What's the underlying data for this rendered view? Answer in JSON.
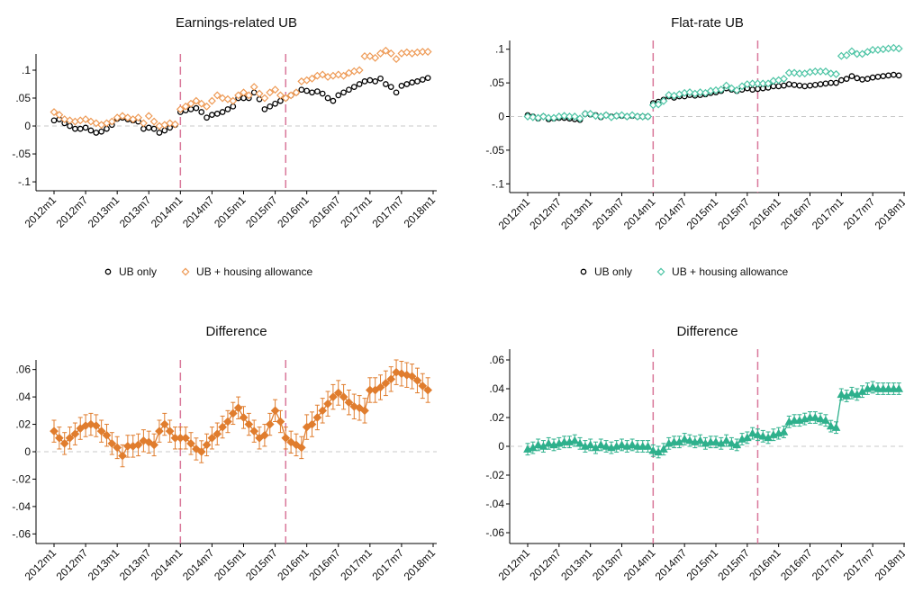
{
  "chart_data": [
    {
      "type": "line",
      "title": "Earnings-related UB",
      "categories": [
        "2012m1",
        null,
        null,
        null,
        null,
        null,
        "2012m7",
        null,
        null,
        null,
        null,
        null,
        "2013m1",
        null,
        null,
        null,
        null,
        null,
        "2013m7",
        null,
        null,
        null,
        null,
        null,
        "2014m1",
        null,
        null,
        null,
        null,
        null,
        "2014m7",
        null,
        null,
        null,
        null,
        null,
        "2015m1",
        null,
        null,
        null,
        null,
        null,
        "2015m7",
        null,
        null,
        null,
        null,
        null,
        "2016m1",
        null,
        null,
        null,
        null,
        null,
        "2016m7",
        null,
        null,
        null,
        null,
        null,
        "2017m1",
        null,
        null,
        null,
        null,
        null,
        "2017m7",
        null,
        null,
        null,
        null,
        null,
        "2018m1"
      ],
      "ylim": [
        -0.116,
        0.129
      ],
      "yticks": [
        {
          "value": -0.1,
          "label": "-.1"
        },
        {
          "value": -0.05,
          "label": "-.05"
        },
        0,
        {
          "value": 0.05,
          "label": ".05"
        },
        {
          "value": 0.1,
          "label": ".1"
        }
      ],
      "hline": 0,
      "vlines": [
        24,
        44
      ],
      "legend": "bottom",
      "series": [
        {
          "name": "UB only",
          "color": "#000000",
          "marker": "circle",
          "filled": false,
          "connect": false,
          "values": [
            0.01,
            0.012,
            0.005,
            0,
            -0.005,
            -0.005,
            -0.003,
            -0.008,
            -0.012,
            -0.01,
            -0.005,
            0.002,
            0.013,
            0.015,
            0.012,
            0.01,
            0.008,
            -0.005,
            -0.003,
            -0.005,
            -0.012,
            -0.008,
            -0.003,
            0.002,
            0.025,
            0.028,
            0.03,
            0.032,
            0.025,
            0.015,
            0.02,
            0.022,
            0.025,
            0.03,
            0.035,
            0.05,
            0.05,
            0.05,
            0.06,
            0.048,
            0.03,
            0.035,
            0.04,
            0.045,
            0.05,
            0.055,
            0.06,
            0.065,
            0.063,
            0.06,
            0.062,
            0.058,
            0.05,
            0.045,
            0.055,
            0.06,
            0.065,
            0.07,
            0.075,
            0.08,
            0.082,
            0.08,
            0.085,
            0.075,
            0.07,
            0.06,
            0.072,
            0.075,
            0.078,
            0.08,
            0.083,
            0.086,
            null
          ]
        },
        {
          "name": "UB + housing allowance",
          "color": "#ee9a55",
          "marker": "diamond",
          "filled": false,
          "connect": false,
          "values": [
            0.025,
            0.02,
            0.012,
            0.01,
            0.008,
            0.01,
            0.012,
            0.008,
            0.005,
            0.002,
            0.005,
            0.008,
            0.015,
            0.018,
            0.015,
            0.012,
            0.015,
            0.005,
            0.018,
            0.008,
            0,
            0.002,
            0.005,
            0.003,
            0.03,
            0.035,
            0.04,
            0.045,
            0.04,
            0.035,
            0.045,
            0.055,
            0.05,
            0.048,
            0.045,
            0.055,
            0.06,
            0.055,
            0.07,
            0.058,
            0.05,
            0.06,
            0.065,
            0.055,
            0.05,
            0.055,
            0.06,
            0.08,
            0.082,
            0.085,
            0.09,
            0.092,
            0.088,
            0.09,
            0.092,
            0.09,
            0.095,
            0.098,
            0.1,
            0.125,
            0.125,
            0.122,
            0.13,
            0.135,
            0.13,
            0.12,
            0.13,
            0.132,
            0.13,
            0.132,
            0.133,
            0.133,
            null
          ]
        }
      ]
    },
    {
      "type": "line",
      "title": "Flat-rate UB",
      "categories": [
        "2012m1",
        null,
        null,
        null,
        null,
        null,
        "2012m7",
        null,
        null,
        null,
        null,
        null,
        "2013m1",
        null,
        null,
        null,
        null,
        null,
        "2013m7",
        null,
        null,
        null,
        null,
        null,
        "2014m1",
        null,
        null,
        null,
        null,
        null,
        "2014m7",
        null,
        null,
        null,
        null,
        null,
        "2015m1",
        null,
        null,
        null,
        null,
        null,
        "2015m7",
        null,
        null,
        null,
        null,
        null,
        "2016m1",
        null,
        null,
        null,
        null,
        null,
        "2016m7",
        null,
        null,
        null,
        null,
        null,
        "2017m1",
        null,
        null,
        null,
        null,
        null,
        "2017m7",
        null,
        null,
        null,
        null,
        null,
        "2018m1"
      ],
      "ylim": [
        -0.113,
        0.113
      ],
      "yticks": [
        {
          "value": -0.1,
          "label": "-.1"
        },
        {
          "value": -0.05,
          "label": "-.05"
        },
        0,
        {
          "value": 0.05,
          "label": ".05"
        },
        {
          "value": 0.1,
          "label": ".1"
        }
      ],
      "hline": 0,
      "vlines": [
        24,
        44
      ],
      "legend": "bottom",
      "series": [
        {
          "name": "UB only",
          "color": "#000000",
          "marker": "circle",
          "filled": false,
          "connect": false,
          "values": [
            0.002,
            0,
            -0.003,
            0,
            -0.004,
            -0.003,
            -0.002,
            -0.002,
            -0.003,
            -0.004,
            -0.005,
            0.004,
            0.003,
            0.002,
            -0.001,
            0.002,
            0,
            0.001,
            0.001,
            0,
            0.001,
            0,
            0,
            0,
            0.02,
            0.022,
            0.025,
            0.03,
            0.028,
            0.03,
            0.03,
            0.032,
            0.031,
            0.032,
            0.033,
            0.035,
            0.036,
            0.038,
            0.042,
            0.04,
            0.038,
            0.04,
            0.042,
            0.04,
            0.041,
            0.042,
            0.043,
            0.045,
            0.045,
            0.046,
            0.048,
            0.047,
            0.046,
            0.045,
            0.046,
            0.047,
            0.048,
            0.049,
            0.05,
            0.05,
            0.054,
            0.056,
            0.06,
            0.057,
            0.055,
            0.056,
            0.058,
            0.059,
            0.06,
            0.061,
            0.062,
            0.061,
            null
          ]
        },
        {
          "name": "UB + housing allowance",
          "color": "#4cc4a4",
          "marker": "diamond",
          "filled": false,
          "connect": false,
          "values": [
            0,
            -0.001,
            -0.002,
            0,
            -0.002,
            -0.002,
            0,
            0.001,
            0,
            0,
            -0.003,
            0.004,
            0.004,
            0.001,
            0,
            0.002,
            -0.001,
            0.001,
            0.002,
            0,
            0.002,
            0,
            0,
            0,
            0.017,
            0.018,
            0.023,
            0.032,
            0.031,
            0.033,
            0.035,
            0.036,
            0.034,
            0.036,
            0.035,
            0.038,
            0.039,
            0.04,
            0.046,
            0.042,
            0.039,
            0.045,
            0.048,
            0.049,
            0.049,
            0.049,
            0.049,
            0.053,
            0.054,
            0.056,
            0.065,
            0.065,
            0.064,
            0.064,
            0.066,
            0.067,
            0.067,
            0.067,
            0.064,
            0.063,
            0.09,
            0.091,
            0.097,
            0.093,
            0.093,
            0.096,
            0.099,
            0.099,
            0.1,
            0.101,
            0.102,
            0.101,
            null
          ]
        }
      ]
    },
    {
      "type": "line",
      "title": "Difference",
      "categories": [
        "2012m1",
        null,
        null,
        null,
        null,
        null,
        "2012m7",
        null,
        null,
        null,
        null,
        null,
        "2013m1",
        null,
        null,
        null,
        null,
        null,
        "2013m7",
        null,
        null,
        null,
        null,
        null,
        "2014m1",
        null,
        null,
        null,
        null,
        null,
        "2014m7",
        null,
        null,
        null,
        null,
        null,
        "2015m1",
        null,
        null,
        null,
        null,
        null,
        "2015m7",
        null,
        null,
        null,
        null,
        null,
        "2016m1",
        null,
        null,
        null,
        null,
        null,
        "2016m7",
        null,
        null,
        null,
        null,
        null,
        "2017m1",
        null,
        null,
        null,
        null,
        null,
        "2017m7",
        null,
        null,
        null,
        null,
        null,
        "2018m1"
      ],
      "ylim": [
        -0.067,
        0.067
      ],
      "yticks": [
        {
          "value": -0.06,
          "label": "-.06"
        },
        {
          "value": -0.04,
          "label": "-.04"
        },
        {
          "value": -0.02,
          "label": "-.02"
        },
        0,
        {
          "value": 0.02,
          "label": ".02"
        },
        {
          "value": 0.04,
          "label": ".04"
        },
        {
          "value": 0.06,
          "label": ".06"
        }
      ],
      "hline": 0,
      "vlines": [
        24,
        44
      ],
      "series": [
        {
          "color": "#e07d2e",
          "marker": "diamond",
          "filled": true,
          "connect": true,
          "values": [
            0.015,
            0.01,
            0.006,
            0.01,
            0.013,
            0.017,
            0.019,
            0.02,
            0.019,
            0.015,
            0.012,
            0.006,
            0.003,
            -0.003,
            0.004,
            0.004,
            0.005,
            0.008,
            0.007,
            0.005,
            0.015,
            0.02,
            0.015,
            0.01,
            0.01,
            0.01,
            0.006,
            0.002,
            0,
            0.005,
            0.01,
            0.013,
            0.018,
            0.022,
            0.028,
            0.032,
            0.025,
            0.02,
            0.015,
            0.01,
            0.012,
            0.02,
            0.03,
            0.022,
            0.01,
            0.007,
            0.005,
            0.003,
            0.018,
            0.02,
            0.025,
            0.03,
            0.035,
            0.04,
            0.043,
            0.04,
            0.036,
            0.033,
            0.032,
            0.03,
            0.045,
            0.045,
            0.047,
            0.05,
            0.053,
            0.058,
            0.057,
            0.056,
            0.055,
            0.052,
            0.048,
            0.045,
            null
          ],
          "errors": [
            0.008,
            0.008,
            0.008,
            0.008,
            0.008,
            0.008,
            0.008,
            0.008,
            0.008,
            0.008,
            0.008,
            0.008,
            0.008,
            0.008,
            0.008,
            0.008,
            0.008,
            0.008,
            0.008,
            0.008,
            0.008,
            0.008,
            0.008,
            0.008,
            0.008,
            0.008,
            0.008,
            0.008,
            0.008,
            0.008,
            0.008,
            0.008,
            0.008,
            0.008,
            0.008,
            0.008,
            0.008,
            0.008,
            0.008,
            0.008,
            0.008,
            0.008,
            0.008,
            0.008,
            0.008,
            0.008,
            0.008,
            0.008,
            0.009,
            0.009,
            0.009,
            0.009,
            0.009,
            0.009,
            0.009,
            0.009,
            0.009,
            0.009,
            0.009,
            0.009,
            0.009,
            0.009,
            0.009,
            0.009,
            0.009,
            0.009,
            0.009,
            0.009,
            0.009,
            0.009,
            0.009,
            0.009,
            null
          ]
        }
      ]
    },
    {
      "type": "line",
      "title": "Difference",
      "categories": [
        "2012m1",
        null,
        null,
        null,
        null,
        null,
        "2012m7",
        null,
        null,
        null,
        null,
        null,
        "2013m1",
        null,
        null,
        null,
        null,
        null,
        "2013m7",
        null,
        null,
        null,
        null,
        null,
        "2014m1",
        null,
        null,
        null,
        null,
        null,
        "2014m7",
        null,
        null,
        null,
        null,
        null,
        "2015m1",
        null,
        null,
        null,
        null,
        null,
        "2015m7",
        null,
        null,
        null,
        null,
        null,
        "2016m1",
        null,
        null,
        null,
        null,
        null,
        "2016m7",
        null,
        null,
        null,
        null,
        null,
        "2017m1",
        null,
        null,
        null,
        null,
        null,
        "2017m7",
        null,
        null,
        null,
        null,
        null,
        "2018m1"
      ],
      "ylim": [
        -0.0675,
        0.0675
      ],
      "yticks": [
        {
          "value": -0.06,
          "label": "-.06"
        },
        {
          "value": -0.04,
          "label": "-.04"
        },
        {
          "value": -0.02,
          "label": "-.02"
        },
        0,
        {
          "value": 0.02,
          "label": ".02"
        },
        {
          "value": 0.04,
          "label": ".04"
        },
        {
          "value": 0.06,
          "label": ".06"
        }
      ],
      "hline": 0,
      "vlines": [
        24,
        44
      ],
      "series": [
        {
          "color": "#2eb08c",
          "marker": "triangle",
          "filled": true,
          "connect": true,
          "values": [
            -0.002,
            -0.001,
            0.001,
            0,
            0.002,
            0.001,
            0.002,
            0.003,
            0.003,
            0.004,
            0.002,
            0,
            0.001,
            -0.001,
            0.001,
            0,
            -0.001,
            0,
            0.001,
            0,
            0.001,
            0,
            0,
            0,
            -0.003,
            -0.004,
            -0.002,
            0.002,
            0.003,
            0.003,
            0.005,
            0.004,
            0.003,
            0.004,
            0.002,
            0.003,
            0.003,
            0.002,
            0.004,
            0.002,
            0.001,
            0.005,
            0.006,
            0.009,
            0.008,
            0.007,
            0.006,
            0.008,
            0.009,
            0.01,
            0.017,
            0.018,
            0.018,
            0.019,
            0.02,
            0.02,
            0.019,
            0.018,
            0.014,
            0.013,
            0.036,
            0.035,
            0.037,
            0.036,
            0.038,
            0.04,
            0.041,
            0.04,
            0.04,
            0.04,
            0.04,
            0.04,
            null
          ],
          "errors": [
            0.004,
            0.004,
            0.004,
            0.004,
            0.004,
            0.004,
            0.004,
            0.004,
            0.004,
            0.004,
            0.004,
            0.004,
            0.004,
            0.004,
            0.004,
            0.004,
            0.004,
            0.004,
            0.004,
            0.004,
            0.004,
            0.004,
            0.004,
            0.004,
            0.004,
            0.004,
            0.004,
            0.004,
            0.004,
            0.004,
            0.004,
            0.004,
            0.004,
            0.004,
            0.004,
            0.004,
            0.004,
            0.004,
            0.004,
            0.004,
            0.004,
            0.004,
            0.004,
            0.004,
            0.004,
            0.004,
            0.004,
            0.004,
            0.004,
            0.004,
            0.004,
            0.004,
            0.004,
            0.004,
            0.004,
            0.004,
            0.004,
            0.004,
            0.004,
            0.004,
            0.004,
            0.004,
            0.004,
            0.004,
            0.004,
            0.004,
            0.004,
            0.004,
            0.004,
            0.004,
            0.004,
            0.004,
            null
          ]
        }
      ]
    }
  ]
}
